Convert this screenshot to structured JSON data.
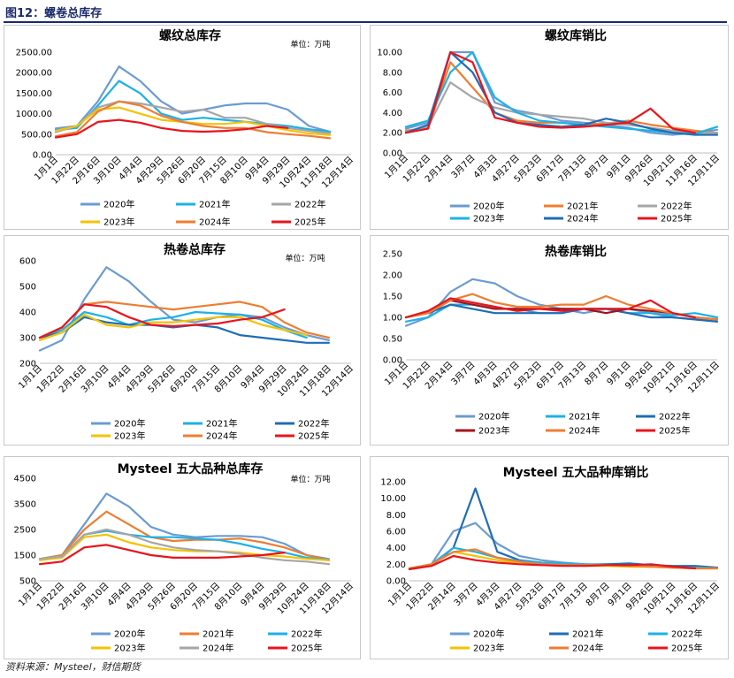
{
  "figure_title": "图12：螺卷总库存",
  "source": "资料来源：Mysteel，财信期货",
  "colors": {
    "2020": "#6b9bd2",
    "2021": "#e8823a",
    "2022": "#a6a6a6",
    "2023": "#f5c200",
    "2024": "#ee7d32",
    "2025": "#e8141c"
  },
  "chart_data": [
    {
      "id": "rebar-stock",
      "type": "line",
      "title": "螺纹总库存",
      "unit": "单位：万吨",
      "ylim": [
        0,
        2500
      ],
      "yticks": [
        "0.00",
        "500.00",
        "1000.00",
        "1500.00",
        "2000.00",
        "2500.00"
      ],
      "xticks": [
        "1月1日",
        "1月22日",
        "2月16日",
        "3月10日",
        "4月4日",
        "4月29日",
        "5月26日",
        "6月20日",
        "7月15日",
        "8月10日",
        "9月4日",
        "9月29日",
        "10月24日",
        "11月18日",
        "12月14日"
      ],
      "legend": [
        {
          "name": "2020年",
          "color": "#6b9bd2"
        },
        {
          "name": "2021年",
          "color": "#1cb1e8"
        },
        {
          "name": "2022年",
          "color": "#a6a6a6"
        },
        {
          "name": "2023年",
          "color": "#f5c200"
        },
        {
          "name": "2024年",
          "color": "#ee7d32"
        },
        {
          "name": "2025年",
          "color": "#e8141c"
        }
      ],
      "series": [
        {
          "name": "2020年",
          "color": "#6b9bd2",
          "values": [
            640,
            700,
            1300,
            2150,
            1800,
            1300,
            1000,
            1100,
            1200,
            1250,
            1250,
            1100,
            700,
            560
          ]
        },
        {
          "name": "2021年",
          "color": "#1cb1e8",
          "values": [
            600,
            650,
            1200,
            1800,
            1500,
            1000,
            850,
            900,
            850,
            800,
            750,
            700,
            620,
            560
          ]
        },
        {
          "name": "2022年",
          "color": "#a6a6a6",
          "values": [
            550,
            700,
            1150,
            1300,
            1250,
            1150,
            1050,
            1100,
            900,
            900,
            750,
            650,
            580,
            520
          ]
        },
        {
          "name": "2023年",
          "color": "#f5c200",
          "values": [
            580,
            700,
            1100,
            1150,
            1000,
            850,
            800,
            750,
            750,
            800,
            700,
            600,
            520,
            480
          ]
        },
        {
          "name": "2024年",
          "color": "#ee7d32",
          "values": [
            450,
            550,
            1050,
            1300,
            1200,
            950,
            800,
            700,
            650,
            650,
            550,
            500,
            460,
            400
          ]
        },
        {
          "name": "2025年",
          "color": "#e8141c",
          "values": [
            420,
            500,
            800,
            850,
            780,
            650,
            580,
            560,
            580,
            620,
            700,
            650
          ]
        }
      ]
    },
    {
      "id": "rebar-ratio",
      "type": "line",
      "title": "螺纹库销比",
      "unit": "",
      "ylim": [
        0,
        10
      ],
      "yticks": [
        "0.00",
        "2.00",
        "4.00",
        "6.00",
        "8.00",
        "10.00"
      ],
      "xticks": [
        "1月1日",
        "1月22日",
        "2月14日",
        "3月7日",
        "4月3日",
        "4月27日",
        "5月23日",
        "6月17日",
        "7月13日",
        "8月7日",
        "9月1日",
        "9月26日",
        "10月21日",
        "11月16日",
        "12月11日"
      ],
      "legend": [
        {
          "name": "2020年",
          "color": "#6b9bd2"
        },
        {
          "name": "2021年",
          "color": "#ee7d32"
        },
        {
          "name": "2022年",
          "color": "#a6a6a6"
        },
        {
          "name": "2023年",
          "color": "#1cb1e8"
        },
        {
          "name": "2024年",
          "color": "#1f6db5"
        },
        {
          "name": "2025年",
          "color": "#e8141c"
        }
      ],
      "series": [
        {
          "name": "2020年",
          "color": "#6b9bd2",
          "values": [
            2.4,
            3.0,
            10,
            10,
            5.0,
            4.2,
            3.8,
            3.2,
            3.0,
            2.8,
            2.5,
            2.0,
            1.8,
            2.0,
            2.3
          ]
        },
        {
          "name": "2021年",
          "color": "#ee7d32",
          "values": [
            2.2,
            2.5,
            9,
            6.5,
            4.0,
            3.2,
            3.0,
            3.0,
            2.8,
            2.9,
            3.2,
            2.8,
            2.5,
            2.2,
            2.0
          ]
        },
        {
          "name": "2022年",
          "color": "#a6a6a6",
          "values": [
            2.1,
            2.6,
            7.0,
            5.5,
            4.5,
            4.0,
            3.8,
            3.6,
            3.4,
            3.0,
            2.8,
            2.5,
            2.2,
            2.0,
            2.0
          ]
        },
        {
          "name": "2023年",
          "color": "#1cb1e8",
          "values": [
            2.6,
            3.2,
            8,
            10,
            5.5,
            4.0,
            3.2,
            3.0,
            2.8,
            2.6,
            2.4,
            2.2,
            2.0,
            1.9,
            2.6
          ]
        },
        {
          "name": "2024年",
          "color": "#1f6db5",
          "values": [
            2.0,
            2.8,
            10,
            8,
            4.0,
            3.0,
            2.8,
            2.6,
            2.8,
            3.4,
            3.0,
            2.4,
            2.0,
            1.8,
            1.8
          ]
        },
        {
          "name": "2025年",
          "color": "#e8141c",
          "values": [
            2.0,
            2.4,
            10,
            9,
            3.5,
            3.0,
            2.6,
            2.5,
            2.6,
            2.8,
            3.0,
            4.4,
            2.4,
            2.0
          ]
        }
      ]
    },
    {
      "id": "hrc-stock",
      "type": "line",
      "title": "热卷总库存",
      "unit": "单位：万吨",
      "ylim": [
        200,
        600
      ],
      "yticks": [
        "200",
        "300",
        "400",
        "500",
        "600"
      ],
      "xticks": [
        "1月1日",
        "1月22日",
        "2月16日",
        "3月10日",
        "4月4日",
        "4月29日",
        "5月26日",
        "6月20日",
        "7月15日",
        "8月10日",
        "9月4日",
        "9月29日",
        "10月24日",
        "11月18日",
        "12月14日"
      ],
      "legend": [
        {
          "name": "2020年",
          "color": "#6b9bd2"
        },
        {
          "name": "2021年",
          "color": "#1cb1e8"
        },
        {
          "name": "2022年",
          "color": "#1f6db5"
        },
        {
          "name": "2023年",
          "color": "#f5c200"
        },
        {
          "name": "2024年",
          "color": "#ee7d32"
        },
        {
          "name": "2025年",
          "color": "#e8141c"
        }
      ],
      "series": [
        {
          "name": "2020年",
          "color": "#6b9bd2",
          "values": [
            250,
            290,
            450,
            575,
            520,
            440,
            370,
            360,
            380,
            390,
            380,
            340,
            310,
            290
          ]
        },
        {
          "name": "2021年",
          "color": "#1cb1e8",
          "values": [
            300,
            330,
            400,
            380,
            350,
            370,
            380,
            400,
            395,
            390,
            370,
            330,
            300
          ]
        },
        {
          "name": "2022年",
          "color": "#1f6db5",
          "values": [
            300,
            320,
            380,
            360,
            350,
            350,
            340,
            350,
            340,
            310,
            300,
            290,
            280,
            280
          ]
        },
        {
          "name": "2023年",
          "color": "#f5c200",
          "values": [
            290,
            320,
            390,
            350,
            340,
            360,
            360,
            370,
            380,
            380,
            350,
            330,
            310
          ]
        },
        {
          "name": "2024年",
          "color": "#ee7d32",
          "values": [
            300,
            340,
            430,
            440,
            430,
            420,
            410,
            420,
            430,
            440,
            420,
            360,
            320,
            300
          ]
        },
        {
          "name": "2025年",
          "color": "#e8141c",
          "values": [
            300,
            340,
            430,
            420,
            380,
            350,
            345,
            350,
            355,
            370,
            380,
            410
          ]
        }
      ]
    },
    {
      "id": "hrc-ratio",
      "type": "line",
      "title": "热卷库销比",
      "unit": "",
      "ylim": [
        0,
        2.5
      ],
      "yticks": [
        "0.00",
        "0.50",
        "1.00",
        "1.50",
        "2.00",
        "2.50"
      ],
      "xticks": [
        "1月1日",
        "1月22日",
        "2月14日",
        "3月7日",
        "4月3日",
        "4月27日",
        "5月23日",
        "6月17日",
        "7月13日",
        "8月7日",
        "9月1日",
        "9月26日",
        "10月21日",
        "11月16日",
        "12月11日"
      ],
      "legend": [
        {
          "name": "2020年",
          "color": "#6b9bd2"
        },
        {
          "name": "2021年",
          "color": "#1cb1e8"
        },
        {
          "name": "2022年",
          "color": "#1f6db5"
        },
        {
          "name": "2023年",
          "color": "#a0141c"
        },
        {
          "name": "2024年",
          "color": "#ee7d32"
        },
        {
          "name": "2025年",
          "color": "#e8141c"
        }
      ],
      "series": [
        {
          "name": "2020年",
          "color": "#6b9bd2",
          "values": [
            0.8,
            1.0,
            1.6,
            1.9,
            1.8,
            1.5,
            1.3,
            1.2,
            1.1,
            1.2,
            1.2,
            1.1,
            1.0,
            0.95,
            0.9
          ]
        },
        {
          "name": "2021年",
          "color": "#1cb1e8",
          "values": [
            0.9,
            1.0,
            1.3,
            1.3,
            1.2,
            1.2,
            1.1,
            1.1,
            1.2,
            1.2,
            1.1,
            1.1,
            1.05,
            1.1,
            1.0
          ]
        },
        {
          "name": "2022年",
          "color": "#1f6db5",
          "values": [
            1.0,
            1.1,
            1.3,
            1.2,
            1.1,
            1.1,
            1.1,
            1.1,
            1.2,
            1.2,
            1.1,
            1.0,
            1.0,
            0.95,
            0.9
          ]
        },
        {
          "name": "2023年",
          "color": "#a0141c",
          "values": [
            1.0,
            1.1,
            1.4,
            1.3,
            1.2,
            1.2,
            1.2,
            1.2,
            1.2,
            1.1,
            1.2,
            1.15,
            1.1,
            1.0,
            0.95
          ]
        },
        {
          "name": "2024年",
          "color": "#ee7d32",
          "values": [
            1.0,
            1.1,
            1.4,
            1.55,
            1.35,
            1.25,
            1.25,
            1.3,
            1.3,
            1.5,
            1.3,
            1.2,
            1.1,
            1.0,
            0.95
          ]
        },
        {
          "name": "2025年",
          "color": "#e8141c",
          "values": [
            1.0,
            1.15,
            1.45,
            1.35,
            1.25,
            1.15,
            1.2,
            1.15,
            1.2,
            1.2,
            1.2,
            1.4,
            1.1,
            1.0
          ]
        }
      ]
    },
    {
      "id": "five-stock",
      "type": "line",
      "title": "Mysteel 五大品种总库存",
      "unit": "单位：万吨",
      "ylim": [
        500,
        4500
      ],
      "yticks": [
        "500",
        "1500",
        "2500",
        "3500",
        "4500"
      ],
      "xticks": [
        "1月1日",
        "1月22日",
        "2月16日",
        "3月10日",
        "4月4日",
        "4月29日",
        "5月26日",
        "6月20日",
        "7月15日",
        "8月10日",
        "9月4日",
        "9月29日",
        "10月24日",
        "11月18日",
        "12月14日"
      ],
      "legend": [
        {
          "name": "2020年",
          "color": "#6b9bd2"
        },
        {
          "name": "2021年",
          "color": "#ee7d32"
        },
        {
          "name": "2022年",
          "color": "#1cb1e8"
        },
        {
          "name": "2023年",
          "color": "#f5c200"
        },
        {
          "name": "2024年",
          "color": "#a6a6a6"
        },
        {
          "name": "2025年",
          "color": "#e8141c"
        }
      ],
      "series": [
        {
          "name": "2020年",
          "color": "#6b9bd2",
          "values": [
            1350,
            1500,
            2700,
            3900,
            3400,
            2600,
            2300,
            2200,
            2250,
            2250,
            2200,
            1950,
            1500,
            1350
          ]
        },
        {
          "name": "2021年",
          "color": "#ee7d32",
          "values": [
            1350,
            1500,
            2500,
            3200,
            2700,
            2200,
            2050,
            2100,
            2100,
            2150,
            2000,
            1800,
            1500,
            1300
          ]
        },
        {
          "name": "2022年",
          "color": "#1cb1e8",
          "values": [
            1350,
            1450,
            2300,
            2450,
            2300,
            2200,
            2200,
            2150,
            2100,
            1950,
            1750,
            1600,
            1400,
            1300
          ]
        },
        {
          "name": "2023年",
          "color": "#f5c200",
          "values": [
            1300,
            1400,
            2200,
            2300,
            2000,
            1800,
            1700,
            1650,
            1650,
            1600,
            1500,
            1450,
            1350,
            1300
          ]
        },
        {
          "name": "2024年",
          "color": "#a6a6a6",
          "values": [
            1350,
            1450,
            2300,
            2500,
            2300,
            2000,
            1800,
            1700,
            1650,
            1550,
            1400,
            1300,
            1250,
            1150
          ]
        },
        {
          "name": "2025年",
          "color": "#e8141c",
          "values": [
            1150,
            1250,
            1800,
            1900,
            1700,
            1500,
            1400,
            1400,
            1400,
            1450,
            1500,
            1600
          ]
        }
      ]
    },
    {
      "id": "five-ratio",
      "type": "line",
      "title": "Mysteel 五大品种库销比",
      "unit": "",
      "ylim": [
        0,
        12
      ],
      "yticks": [
        "0.00",
        "2.00",
        "4.00",
        "6.00",
        "8.00",
        "10.00",
        "12.00"
      ],
      "xticks": [
        "1月1日",
        "1月22日",
        "2月14日",
        "3月7日",
        "4月3日",
        "4月27日",
        "5月23日",
        "6月17日",
        "7月13日",
        "8月7日",
        "9月1日",
        "9月26日",
        "10月21日",
        "11月16日",
        "12月11日"
      ],
      "legend": [
        {
          "name": "2020年",
          "color": "#6b9bd2"
        },
        {
          "name": "2021年",
          "color": "#1f6db5"
        },
        {
          "name": "2022年",
          "color": "#1cb1e8"
        },
        {
          "name": "2023年",
          "color": "#f5c200"
        },
        {
          "name": "2024年",
          "color": "#ee7d32"
        },
        {
          "name": "2025年",
          "color": "#e8141c"
        }
      ],
      "series": [
        {
          "name": "2020年",
          "color": "#6b9bd2",
          "values": [
            1.5,
            2.0,
            6.0,
            7.0,
            4.5,
            3.0,
            2.5,
            2.2,
            2.0,
            2.0,
            1.9,
            1.8,
            1.7,
            1.6,
            1.6
          ]
        },
        {
          "name": "2021年",
          "color": "#1f6db5",
          "values": [
            1.4,
            1.8,
            4.0,
            11.2,
            3.5,
            2.5,
            2.2,
            2.0,
            1.9,
            2.0,
            2.1,
            1.9,
            1.8,
            1.8,
            1.6
          ]
        },
        {
          "name": "2022年",
          "color": "#1cb1e8",
          "values": [
            1.5,
            2.0,
            4.0,
            3.5,
            2.8,
            2.4,
            2.2,
            2.1,
            2.0,
            1.9,
            1.8,
            1.7,
            1.6,
            1.6,
            1.5
          ]
        },
        {
          "name": "2023年",
          "color": "#f5c200",
          "values": [
            1.5,
            2.0,
            3.5,
            3.0,
            2.5,
            2.2,
            2.0,
            1.9,
            1.8,
            1.8,
            1.7,
            1.7,
            1.6,
            1.5,
            1.5
          ]
        },
        {
          "name": "2024年",
          "color": "#ee7d32",
          "values": [
            1.5,
            2.0,
            3.5,
            3.8,
            2.8,
            2.3,
            2.0,
            1.9,
            1.9,
            1.9,
            1.8,
            1.7,
            1.6,
            1.5,
            1.5
          ]
        },
        {
          "name": "2025年",
          "color": "#e8141c",
          "values": [
            1.4,
            1.8,
            3.0,
            2.5,
            2.2,
            2.0,
            1.9,
            1.8,
            1.8,
            1.9,
            1.9,
            2.0,
            1.7,
            1.5
          ]
        }
      ]
    }
  ]
}
